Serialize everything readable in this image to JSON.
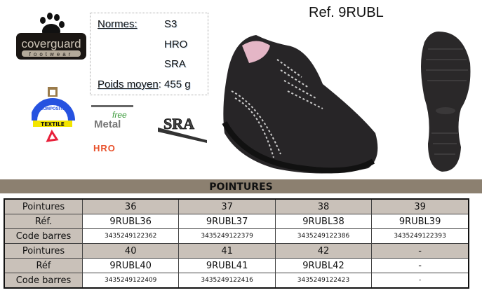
{
  "brand": {
    "logo_name": "coverguard",
    "logo_sub": "footwear"
  },
  "title": "Ref. 9RUBL",
  "specs": {
    "normes_label": "Normes:",
    "normes": [
      "S3",
      "HRO",
      "SRA"
    ],
    "poids_label": "Poids moyen",
    "poids_value": ": 455 g"
  },
  "badges": {
    "composite": "COMPOSITE",
    "textile": "TEXTILE",
    "free": "free",
    "metal": "Metal",
    "hro": "HRO",
    "sra": "SRA"
  },
  "section_title": "POINTURES",
  "table": {
    "rows": [
      {
        "label": "Pointures",
        "cells": [
          "36",
          "37",
          "38",
          "39"
        ],
        "type": "size"
      },
      {
        "label": "Réf.",
        "cells": [
          "9RUBL36",
          "9RUBL37",
          "9RUBL38",
          "9RUBL39"
        ],
        "type": "ref"
      },
      {
        "label": "Code barres",
        "cells": [
          "3435249122362",
          "3435249122379",
          "3435249122386",
          "3435249122393"
        ],
        "type": "code"
      },
      {
        "label": "Pointures",
        "cells": [
          "40",
          "41",
          "42",
          "-"
        ],
        "type": "size"
      },
      {
        "label": "Réf",
        "cells": [
          "9RUBL40",
          "9RUBL41",
          "9RUBL42",
          "-"
        ],
        "type": "ref"
      },
      {
        "label": "Code barres",
        "cells": [
          "3435249122409",
          "3435249122416",
          "3435249122423",
          "-"
        ],
        "type": "code"
      }
    ]
  },
  "colors": {
    "header_bar": "#8c8070",
    "size_row": "#c9c1b9",
    "hro": "#e8502a"
  }
}
